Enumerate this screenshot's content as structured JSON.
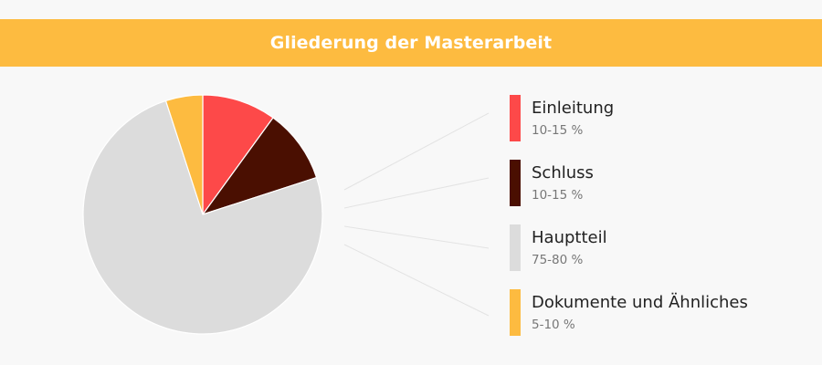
{
  "header": {
    "title": "Gliederung der Masterarbeit"
  },
  "chart_data": {
    "type": "pie",
    "title": "Gliederung der Masterarbeit",
    "slices": [
      {
        "label": "Einleitung",
        "range_text": "10-15 %",
        "value": 10,
        "color": "#fd4949"
      },
      {
        "label": "Schluss",
        "range_text": "10-15 %",
        "value": 10,
        "color": "#4a0f01"
      },
      {
        "label": "Hauptteil",
        "range_text": "75-80 %",
        "value": 75,
        "color": "#dcdcdc"
      },
      {
        "label": "Dokumente und Ähnliches",
        "range_text": "5-10 %",
        "value": 5,
        "color": "#fdbb40"
      }
    ],
    "legend_position": "right"
  }
}
